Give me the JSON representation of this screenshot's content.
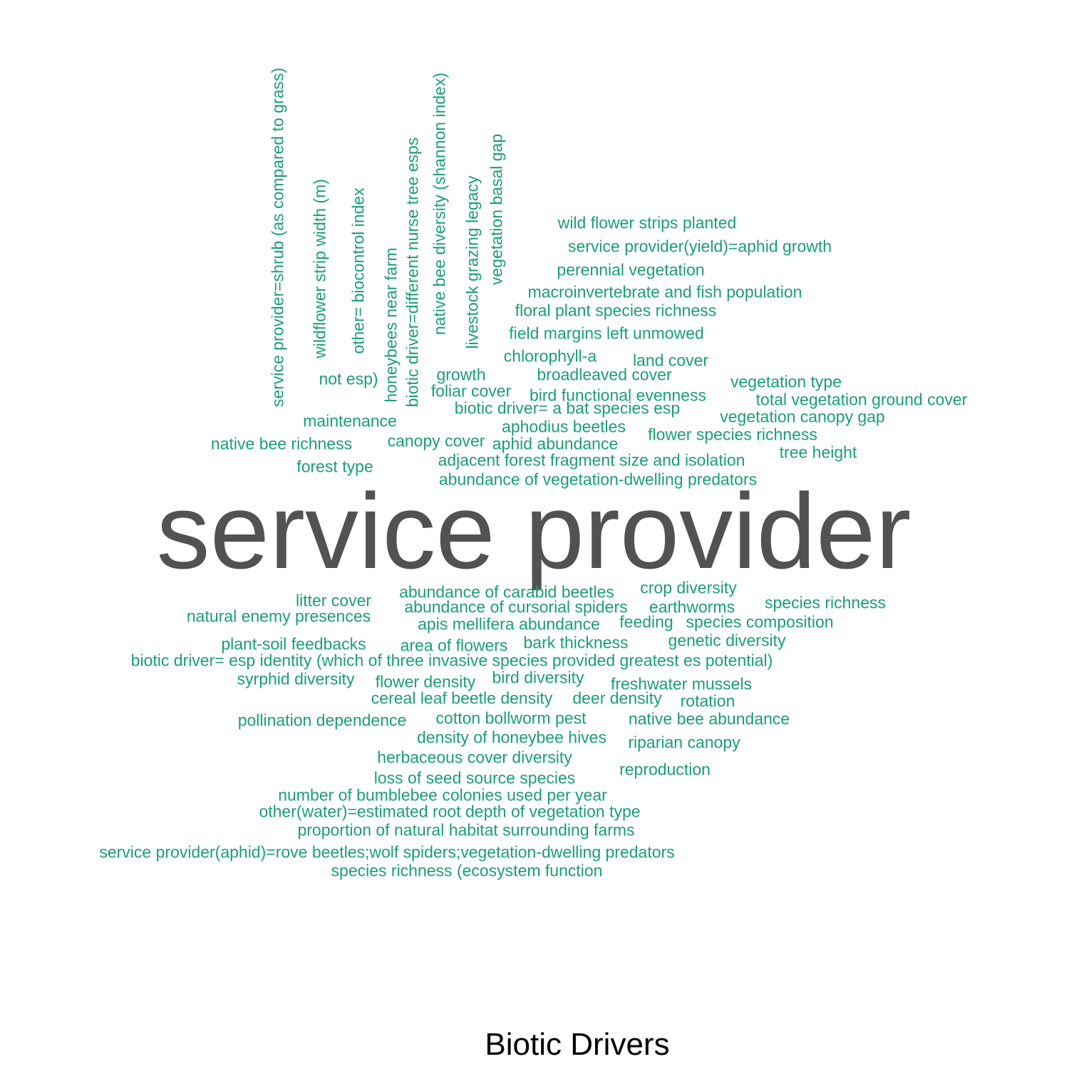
{
  "caption": "Biotic Drivers",
  "colors": {
    "small_words": "#1b9e77",
    "large_word": "#525252",
    "caption": "#000000",
    "background": "#ffffff"
  },
  "words": [
    "service provider",
    "service provider=shrub (as compared to grass)",
    "wildflower strip width (m)",
    "other= biocontrol index",
    "honeybees near farm",
    "biotic driver=different nurse tree esps",
    "native bee  diversity (shannon index)",
    "livestock grazing legacy",
    "vegetation basal gap",
    "wild flower strips planted",
    "service provider(yield)=aphid growth",
    "perennial vegetation",
    "macroinvertebrate and fish population",
    "floral plant species richness",
    "field margins left unmowed",
    "chlorophyll-a",
    "land cover",
    "not esp)",
    "growth",
    "broadleaved cover",
    "vegetation type",
    "foliar cover",
    "bird functional evenness",
    "total vegetation ground cover",
    "biotic driver= a bat species esp",
    "vegetation canopy gap",
    "maintenance",
    "aphodius beetles",
    "flower species richness",
    "native bee richness",
    "canopy cover",
    "aphid abundance",
    "tree height",
    "adjacent forest fragment size and isolation",
    "forest type",
    "abundance of vegetation-dwelling predators",
    "crop diversity",
    "abundance of carabid beetles",
    "litter cover",
    "species richness",
    "abundance of cursorial spiders",
    "earthworms",
    "natural enemy presences",
    "apis mellifera abundance",
    "feeding",
    "species composition",
    "genetic diversity",
    "plant-soil feedbacks",
    "bark thickness",
    "area of flowers",
    "biotic driver= esp identity (which of three invasive species provided greatest es potential)",
    "bird diversity",
    "syrphid diversity",
    "flower density",
    "freshwater mussels",
    "cereal leaf beetle density",
    "deer density",
    "rotation",
    "pollination dependence",
    "cotton bollworm pest",
    "native bee abundance",
    "density of honeybee hives",
    "riparian canopy",
    "herbaceous cover diversity",
    "reproduction",
    "loss of seed source species",
    "number of bumblebee colonies used per year",
    "other(water)=estimated root depth of vegetation type",
    "proportion of natural habitat surrounding farms",
    "service provider(aphid)=rove beetles;wolf spiders;vegetation-dwelling predators",
    "species richness (ecosystem function"
  ]
}
